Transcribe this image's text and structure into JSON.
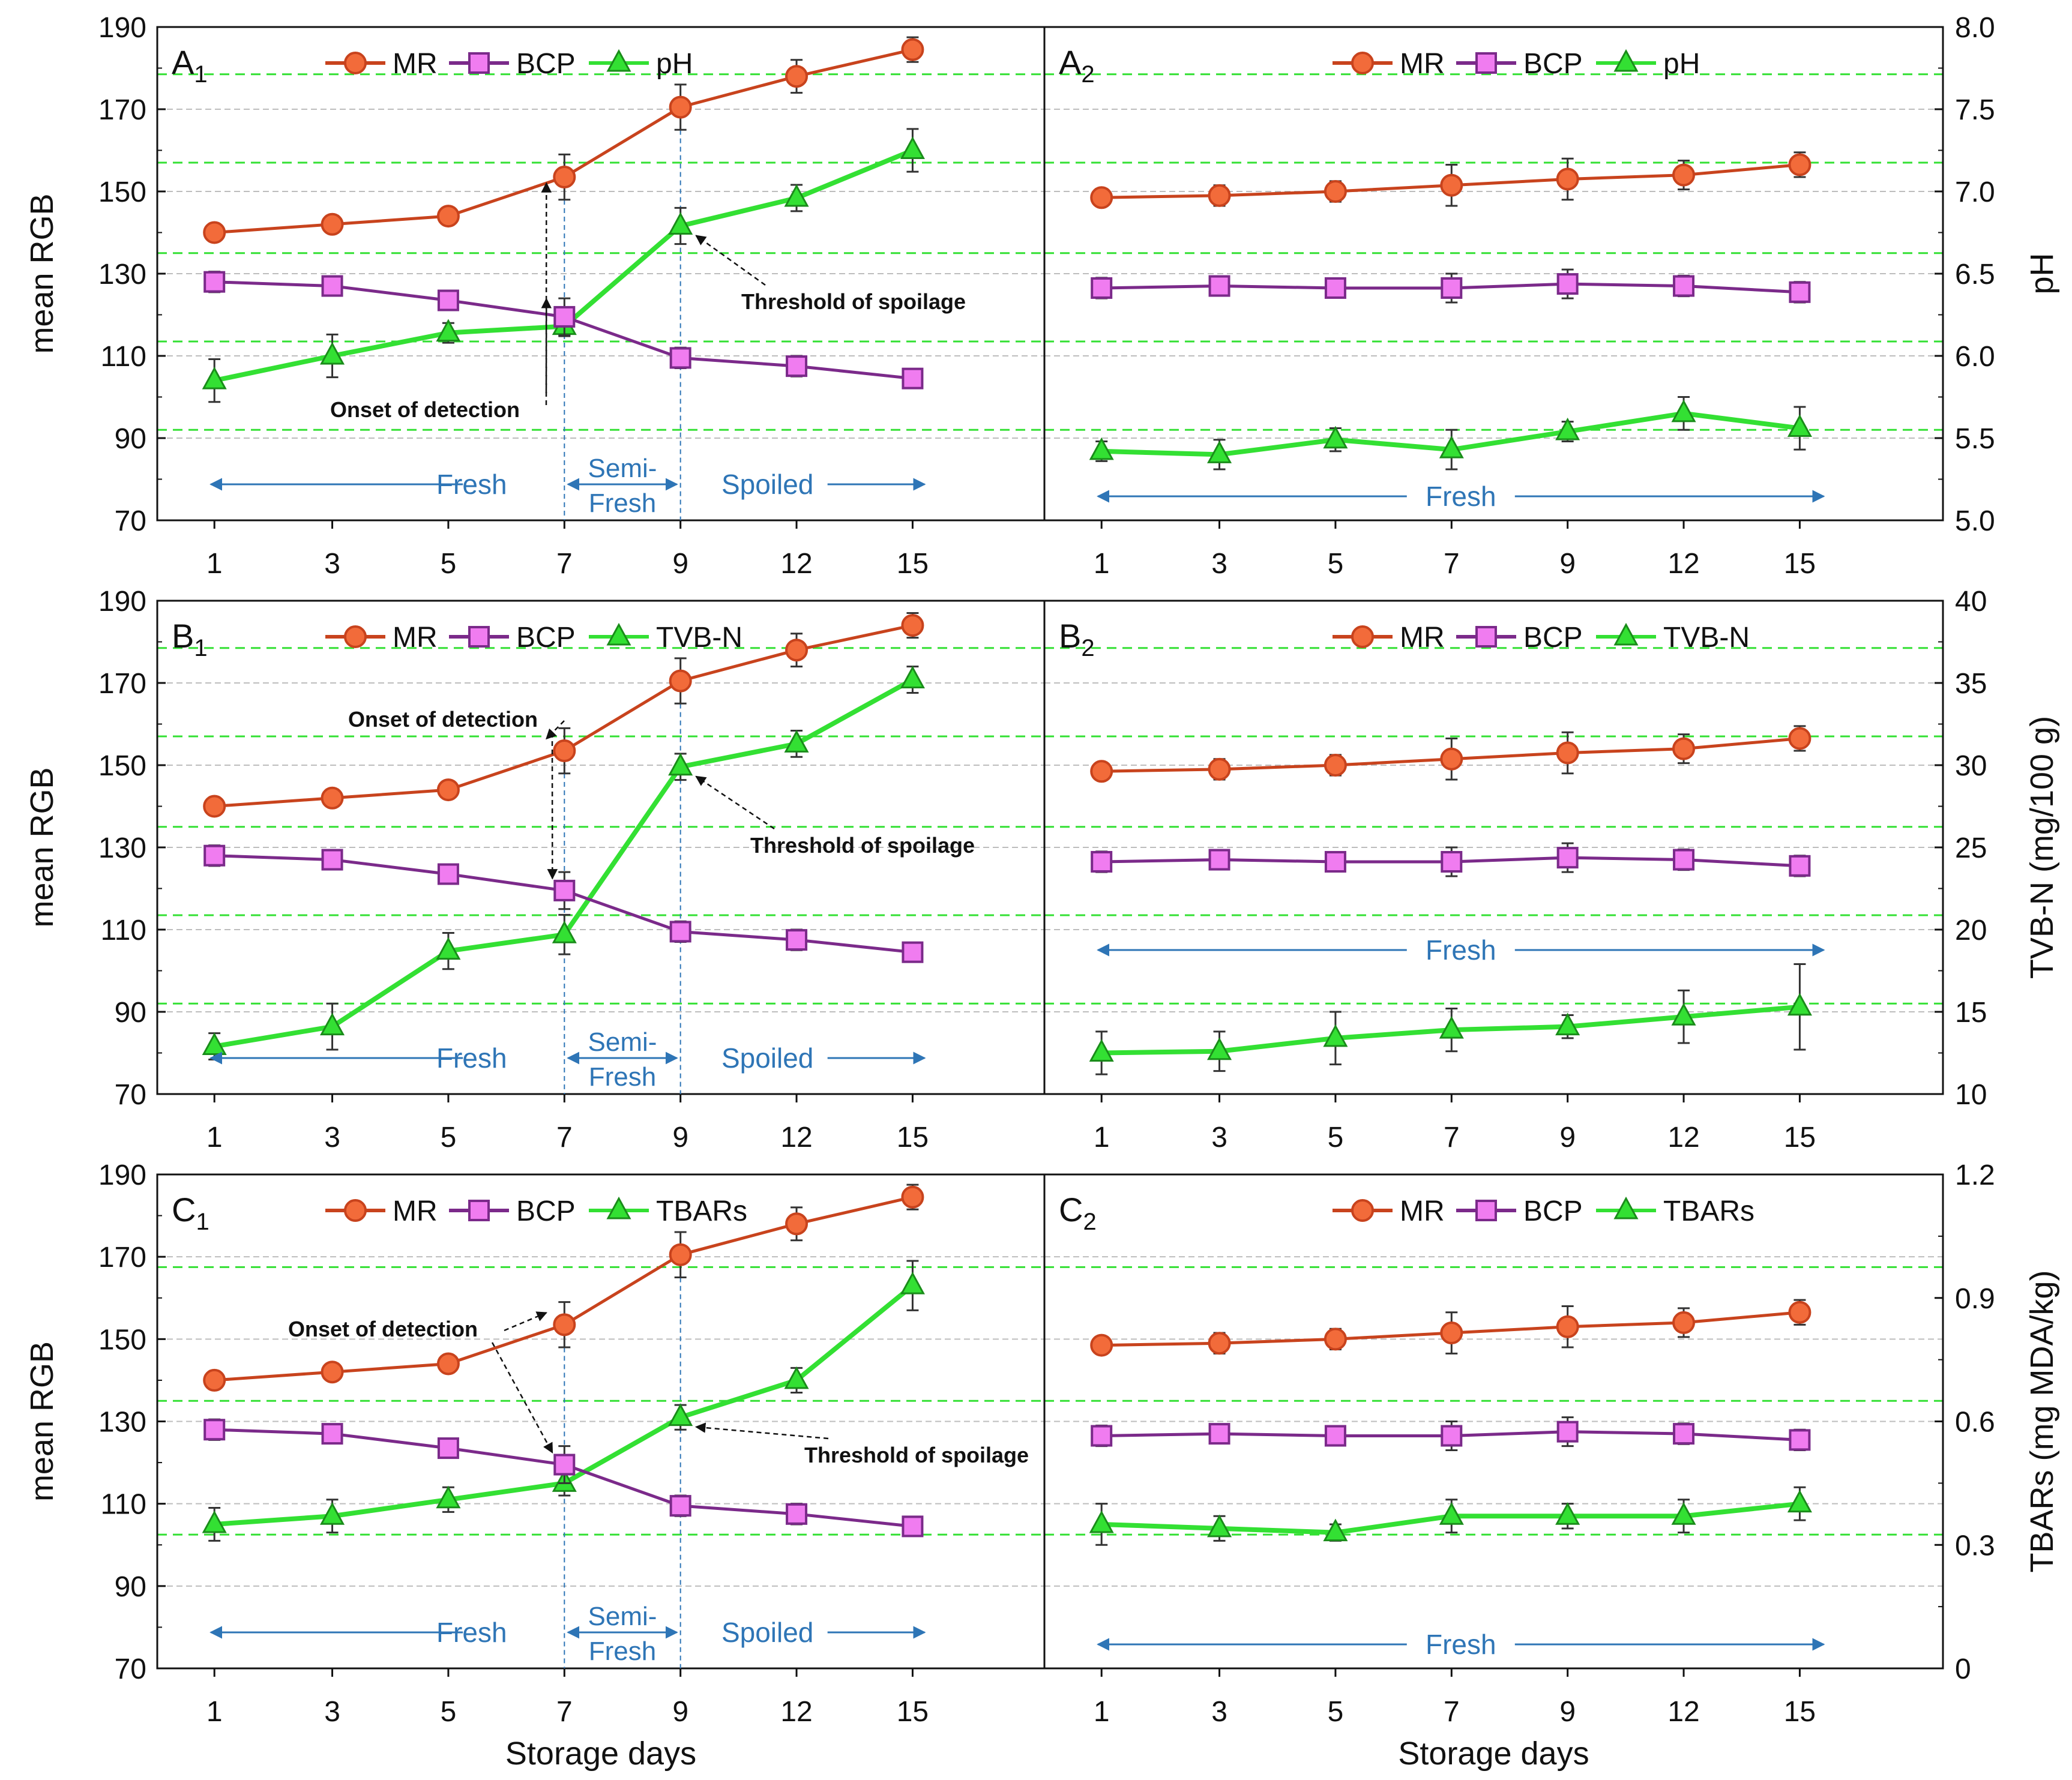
{
  "figure": {
    "xlabel": "Storage days",
    "ylabel_left": "mean RGB",
    "legend_mr": "MR",
    "legend_bcp": "BCP",
    "colors": {
      "mr_line": "#c8431d",
      "mr_fill": "#f26b3a",
      "bcp_line": "#7b2a8a",
      "bcp_fill": "#f07cf0",
      "green": "#33e033",
      "green_dark": "#1a8c1a",
      "annot_blue": "#2e75b6",
      "grid": "#bdbdbd",
      "thresh": "#33e033"
    }
  },
  "chart_data": [
    {
      "id": "A1",
      "panel_label": "A",
      "panel_sub": "1",
      "type": "line",
      "categories": [
        "1",
        "3",
        "5",
        "7",
        "9",
        "12",
        "15"
      ],
      "ylim": [
        70,
        190
      ],
      "yticks": [
        70,
        90,
        110,
        130,
        150,
        170,
        190
      ],
      "ylabel": "mean RGB",
      "series": [
        {
          "name": "MR",
          "values": [
            140,
            142,
            144,
            153.5,
            170.5,
            178,
            184.5
          ],
          "err": [
            2,
            2,
            2,
            5.5,
            5.5,
            4,
            3
          ]
        },
        {
          "name": "BCP",
          "values": [
            128,
            127,
            123.5,
            119.5,
            109.5,
            107.5,
            104.5
          ],
          "err": [
            2.5,
            2,
            2,
            4.5,
            2.5,
            2.5,
            2
          ]
        }
      ],
      "secondary": {
        "name": "pH",
        "values": [
          5.85,
          6.0,
          6.14,
          6.18,
          6.79,
          6.96,
          7.25
        ],
        "err": [
          0.13,
          0.13,
          0.06,
          0.06,
          0.11,
          0.08,
          0.13
        ],
        "ylim": [
          5.0,
          8.0
        ],
        "yticks": [
          5.0,
          5.5,
          6.0,
          6.5,
          7.0,
          7.5,
          8.0
        ],
        "tick_labels": [
          "5.0",
          "5.5",
          "6.0",
          "6.5",
          "7.0",
          "7.5",
          "8.0"
        ],
        "ylabel": "pH",
        "show_axis": false
      },
      "green_lines": [
        92,
        113.5,
        135,
        157,
        178.5
      ],
      "grid_lines": [
        90,
        110,
        130,
        150,
        170,
        190
      ],
      "vlines": [
        3,
        4
      ],
      "annotations": [
        {
          "text": "Onset of detection",
          "kind": "onset"
        },
        {
          "text": "Threshold of spoilage",
          "kind": "threshold"
        }
      ],
      "regions": {
        "fresh": "Fresh",
        "semi_line1": "Semi-",
        "semi_line2": "Fresh",
        "spoiled": "Spoiled"
      },
      "xlabel": ""
    },
    {
      "id": "A2",
      "panel_label": "A",
      "panel_sub": "2",
      "type": "line",
      "categories": [
        "1",
        "3",
        "5",
        "7",
        "9",
        "12",
        "15"
      ],
      "ylim": [
        70,
        190
      ],
      "yticks": [
        70,
        90,
        110,
        130,
        150,
        170,
        190
      ],
      "ylabel": "",
      "series": [
        {
          "name": "MR",
          "values": [
            148.5,
            149,
            150,
            151.5,
            153,
            154,
            156.5
          ],
          "err": [
            2,
            2.5,
            2.5,
            5,
            5,
            3.5,
            3
          ]
        },
        {
          "name": "BCP",
          "values": [
            126.5,
            127,
            126.5,
            126.5,
            127.5,
            127,
            125.5
          ],
          "err": [
            2.5,
            2,
            2,
            3.5,
            3.5,
            2.5,
            2.5
          ]
        }
      ],
      "secondary": {
        "name": "pH",
        "values": [
          5.42,
          5.4,
          5.49,
          5.43,
          5.54,
          5.65,
          5.56
        ],
        "err": [
          0.06,
          0.09,
          0.07,
          0.12,
          0.06,
          0.1,
          0.13
        ],
        "ylim": [
          5.0,
          8.0
        ],
        "yticks": [
          5.0,
          5.5,
          6.0,
          6.5,
          7.0,
          7.5,
          8.0
        ],
        "tick_labels": [
          "5.0",
          "5.5",
          "6.0",
          "6.5",
          "7.0",
          "7.5",
          "8.0"
        ],
        "ylabel": "pH",
        "show_axis": true
      },
      "green_lines": [
        92,
        113.5,
        135,
        157,
        178.5
      ],
      "grid_lines": [
        90,
        110,
        130,
        150,
        170,
        190
      ],
      "vlines": [],
      "annotations": [],
      "regions": {
        "fresh": "Fresh"
      },
      "xlabel": ""
    },
    {
      "id": "B1",
      "panel_label": "B",
      "panel_sub": "1",
      "type": "line",
      "categories": [
        "1",
        "3",
        "5",
        "7",
        "9",
        "12",
        "15"
      ],
      "ylim": [
        70,
        190
      ],
      "yticks": [
        70,
        90,
        110,
        130,
        150,
        170,
        190
      ],
      "ylabel": "mean RGB",
      "series": [
        {
          "name": "MR",
          "values": [
            140,
            142,
            144,
            153.5,
            170.5,
            178,
            184
          ],
          "err": [
            2,
            2,
            2,
            5.5,
            5.5,
            4,
            3
          ]
        },
        {
          "name": "BCP",
          "values": [
            128,
            127,
            123.5,
            119.5,
            109.5,
            107.5,
            104.5
          ],
          "err": [
            2.5,
            2,
            2,
            4.5,
            2.5,
            2.5,
            2
          ]
        }
      ],
      "secondary": {
        "name": "TVB-N",
        "values": [
          12.9,
          14.1,
          18.7,
          19.7,
          29.9,
          31.3,
          35.2
        ],
        "err": [
          0.8,
          1.4,
          1.1,
          1.2,
          0.8,
          0.8,
          0.8
        ],
        "ylim": [
          10,
          40
        ],
        "yticks": [
          10,
          15,
          20,
          25,
          30,
          35,
          40
        ],
        "tick_labels": [
          "10",
          "15",
          "20",
          "25",
          "30",
          "35",
          "40"
        ],
        "ylabel": "TVB-N (mg/100 g)",
        "show_axis": false
      },
      "green_lines": [
        92,
        113.5,
        135,
        157,
        178.5
      ],
      "grid_lines": [
        90,
        110,
        130,
        150,
        170,
        190
      ],
      "vlines": [
        3,
        4
      ],
      "annotations": [
        {
          "text": "Onset of detection",
          "kind": "onset"
        },
        {
          "text": "Threshold of spoilage",
          "kind": "threshold"
        }
      ],
      "regions": {
        "fresh": "Fresh",
        "semi_line1": "Semi-",
        "semi_line2": "Fresh",
        "spoiled": "Spoiled"
      },
      "xlabel": ""
    },
    {
      "id": "B2",
      "panel_label": "B",
      "panel_sub": "2",
      "type": "line",
      "categories": [
        "1",
        "3",
        "5",
        "7",
        "9",
        "12",
        "15"
      ],
      "ylim": [
        70,
        190
      ],
      "yticks": [
        70,
        90,
        110,
        130,
        150,
        170,
        190
      ],
      "ylabel": "",
      "series": [
        {
          "name": "MR",
          "values": [
            148.5,
            149,
            150,
            151.5,
            153,
            154,
            156.5
          ],
          "err": [
            2,
            2.5,
            2.5,
            5,
            5,
            3.5,
            3
          ]
        },
        {
          "name": "BCP",
          "values": [
            126.5,
            127,
            126.5,
            126.5,
            127.5,
            127,
            125.5
          ],
          "err": [
            2.5,
            2,
            2,
            3.5,
            3.5,
            2.5,
            2.5
          ]
        }
      ],
      "secondary": {
        "name": "TVB-N",
        "values": [
          12.5,
          12.6,
          13.4,
          13.9,
          14.1,
          14.7,
          15.3
        ],
        "err": [
          1.3,
          1.2,
          1.6,
          1.3,
          0.7,
          1.6,
          2.6
        ],
        "ylim": [
          10,
          40
        ],
        "yticks": [
          10,
          15,
          20,
          25,
          30,
          35,
          40
        ],
        "tick_labels": [
          "10",
          "15",
          "20",
          "25",
          "30",
          "35",
          "40"
        ],
        "ylabel": "TVB-N (mg/100 g)",
        "show_axis": true
      },
      "green_lines": [
        92,
        113.5,
        135,
        157,
        178.5
      ],
      "grid_lines": [
        90,
        110,
        130,
        150,
        170,
        190
      ],
      "vlines": [],
      "annotations": [],
      "regions": {
        "fresh": "Fresh"
      },
      "xlabel": ""
    },
    {
      "id": "C1",
      "panel_label": "C",
      "panel_sub": "1",
      "type": "line",
      "categories": [
        "1",
        "3",
        "5",
        "7",
        "9",
        "12",
        "15"
      ],
      "ylim": [
        70,
        190
      ],
      "yticks": [
        70,
        90,
        110,
        130,
        150,
        170,
        190
      ],
      "ylabel": "mean RGB",
      "series": [
        {
          "name": "MR",
          "values": [
            140,
            142,
            144,
            153.5,
            170.5,
            178,
            184.5
          ],
          "err": [
            2,
            2,
            2,
            5.5,
            5.5,
            4,
            3
          ]
        },
        {
          "name": "BCP",
          "values": [
            128,
            127,
            123.5,
            119.5,
            109.5,
            107.5,
            104.5
          ],
          "err": [
            2.5,
            2,
            2,
            4.5,
            2.5,
            2.5,
            2
          ]
        }
      ],
      "secondary": {
        "name": "TBARs",
        "values": [
          0.35,
          0.37,
          0.41,
          0.45,
          0.61,
          0.7,
          0.93
        ],
        "err": [
          0.04,
          0.04,
          0.03,
          0.03,
          0.03,
          0.03,
          0.06
        ],
        "ylim": [
          0,
          1.2
        ],
        "yticks": [
          0,
          0.3,
          0.6,
          0.9,
          1.2
        ],
        "tick_labels": [
          "0",
          "0.3",
          "0.6",
          "0.9",
          "1.2"
        ],
        "ylabel": "TBARs (mg MDA/kg)",
        "show_axis": false
      },
      "green_lines": [
        102.5,
        135,
        167.5
      ],
      "grid_lines": [
        90,
        110,
        130,
        150,
        170,
        190
      ],
      "vlines": [
        3,
        4
      ],
      "annotations": [
        {
          "text": "Onset of detection",
          "kind": "onset"
        },
        {
          "text": "Threshold of spoilage",
          "kind": "threshold"
        }
      ],
      "regions": {
        "fresh": "Fresh",
        "semi_line1": "Semi-",
        "semi_line2": "Fresh",
        "spoiled": "Spoiled"
      },
      "xlabel": "Storage days"
    },
    {
      "id": "C2",
      "panel_label": "C",
      "panel_sub": "2",
      "type": "line",
      "categories": [
        "1",
        "3",
        "5",
        "7",
        "9",
        "12",
        "15"
      ],
      "ylim": [
        70,
        190
      ],
      "yticks": [
        70,
        90,
        110,
        130,
        150,
        170,
        190
      ],
      "ylabel": "",
      "series": [
        {
          "name": "MR",
          "values": [
            148.5,
            149,
            150,
            151.5,
            153,
            154,
            156.5
          ],
          "err": [
            2,
            2.5,
            2.5,
            5,
            5,
            3.5,
            3
          ]
        },
        {
          "name": "BCP",
          "values": [
            126.5,
            127,
            126.5,
            126.5,
            127.5,
            127,
            125.5
          ],
          "err": [
            2.5,
            2,
            2,
            3.5,
            3.5,
            2.5,
            2.5
          ]
        }
      ],
      "secondary": {
        "name": "TBARs",
        "values": [
          0.35,
          0.34,
          0.33,
          0.37,
          0.37,
          0.37,
          0.4
        ],
        "err": [
          0.05,
          0.03,
          0.02,
          0.04,
          0.03,
          0.04,
          0.04
        ],
        "ylim": [
          0,
          1.2
        ],
        "yticks": [
          0,
          0.3,
          0.6,
          0.9,
          1.2
        ],
        "tick_labels": [
          "0",
          "0.3",
          "0.6",
          "0.9",
          "1.2"
        ],
        "ylabel": "TBARs (mg MDA/kg)",
        "show_axis": true
      },
      "green_lines": [
        102.5,
        135,
        167.5
      ],
      "grid_lines": [
        90,
        110,
        130,
        150,
        170,
        190
      ],
      "vlines": [],
      "annotations": [],
      "regions": {
        "fresh": "Fresh"
      },
      "xlabel": "Storage days"
    }
  ]
}
